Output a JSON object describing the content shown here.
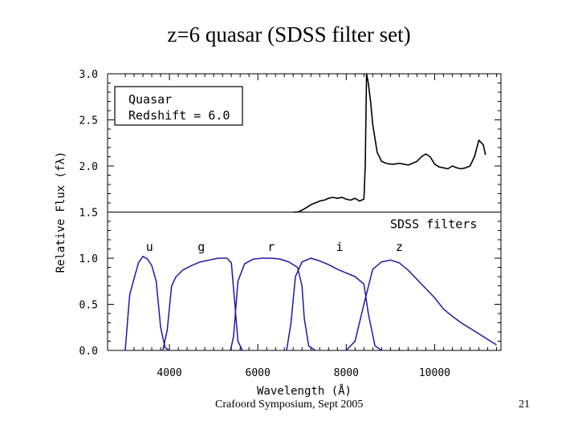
{
  "slide": {
    "title": "z=6 quasar (SDSS filter set)",
    "footer": "Crafoord Symposium, Sept 2005",
    "page_number": "21"
  },
  "colors": {
    "filter_curve": "#1a1aa8",
    "spectrum": "#000000"
  },
  "chart_data": {
    "type": "line",
    "title": "z=6 quasar (SDSS filter set)",
    "xlabel": "Wavelength (Å)",
    "ylabel": "Relative Flux (fλ)",
    "xlim": [
      2600,
      11500
    ],
    "ylim": [
      0.0,
      3.0
    ],
    "x_ticks": [
      4000,
      6000,
      8000,
      10000
    ],
    "x_tick_labels": [
      "4000",
      "6000",
      "8000",
      "10000"
    ],
    "y_ticks": [
      0.0,
      0.5,
      1.0,
      1.5,
      2.0,
      2.5,
      3.0
    ],
    "y_tick_labels": [
      "0.0",
      "0.5",
      "1.0",
      "1.5",
      "2.0",
      "2.5",
      "3.0"
    ],
    "legend_box": {
      "line1": "Quasar",
      "line2": "Redshift = 6.0"
    },
    "baseline_level": 1.5,
    "filters_label": "SDSS filters",
    "series": [
      {
        "name": "Quasar spectrum",
        "x": [
          6800,
          6900,
          7000,
          7100,
          7200,
          7300,
          7400,
          7500,
          7600,
          7700,
          7800,
          7900,
          8000,
          8100,
          8200,
          8300,
          8400,
          8430,
          8460,
          8500,
          8550,
          8600,
          8700,
          8800,
          8900,
          9000,
          9100,
          9200,
          9300,
          9400,
          9500,
          9600,
          9700,
          9800,
          9900,
          10000,
          10100,
          10200,
          10300,
          10400,
          10500,
          10600,
          10700,
          10800,
          10900,
          11000,
          11100,
          11150
        ],
        "y": [
          1.5,
          1.5,
          1.52,
          1.55,
          1.58,
          1.6,
          1.62,
          1.63,
          1.65,
          1.66,
          1.65,
          1.66,
          1.64,
          1.63,
          1.65,
          1.62,
          1.64,
          2.0,
          3.0,
          2.9,
          2.7,
          2.45,
          2.15,
          2.05,
          2.03,
          2.02,
          2.02,
          2.03,
          2.02,
          2.01,
          2.03,
          2.05,
          2.1,
          2.13,
          2.1,
          2.02,
          1.99,
          1.98,
          1.97,
          2.0,
          1.98,
          1.97,
          1.98,
          2.0,
          2.1,
          2.28,
          2.23,
          2.12
        ]
      },
      {
        "name": "u",
        "x": [
          3000,
          3100,
          3200,
          3300,
          3400,
          3500,
          3600,
          3700,
          3800,
          3900,
          4000
        ],
        "y": [
          0.0,
          0.6,
          0.78,
          0.95,
          1.02,
          0.99,
          0.92,
          0.75,
          0.25,
          0.03,
          0.0
        ]
      },
      {
        "name": "g",
        "x": [
          3850,
          3950,
          4050,
          4150,
          4300,
          4500,
          4700,
          4900,
          5100,
          5300,
          5400,
          5480,
          5550,
          5650
        ],
        "y": [
          0.0,
          0.22,
          0.7,
          0.8,
          0.87,
          0.92,
          0.96,
          0.98,
          1.0,
          1.0,
          0.95,
          0.5,
          0.1,
          0.0
        ]
      },
      {
        "name": "r",
        "x": [
          5380,
          5450,
          5550,
          5700,
          5900,
          6100,
          6300,
          6500,
          6700,
          6900,
          7000,
          7050,
          7150,
          7300
        ],
        "y": [
          0.0,
          0.15,
          0.75,
          0.94,
          0.99,
          1.0,
          1.0,
          0.99,
          0.96,
          0.9,
          0.7,
          0.35,
          0.05,
          0.0
        ]
      },
      {
        "name": "i",
        "x": [
          6650,
          6750,
          6850,
          7000,
          7200,
          7400,
          7600,
          7800,
          8000,
          8200,
          8400,
          8500,
          8650,
          8800
        ],
        "y": [
          0.0,
          0.3,
          0.8,
          0.96,
          1.0,
          0.97,
          0.93,
          0.88,
          0.84,
          0.8,
          0.72,
          0.4,
          0.05,
          0.0
        ]
      },
      {
        "name": "z",
        "x": [
          8000,
          8200,
          8400,
          8600,
          8800,
          9000,
          9200,
          9400,
          9600,
          9800,
          10000,
          10200,
          10400,
          10600,
          10800,
          11000,
          11200,
          11400
        ],
        "y": [
          0.0,
          0.1,
          0.5,
          0.88,
          0.96,
          0.98,
          0.95,
          0.87,
          0.77,
          0.67,
          0.57,
          0.45,
          0.37,
          0.3,
          0.24,
          0.18,
          0.12,
          0.06
        ]
      }
    ],
    "filter_labels": [
      {
        "name": "u",
        "text": "u",
        "x": 3550,
        "y": 1.08
      },
      {
        "name": "g",
        "text": "g",
        "x": 4720,
        "y": 1.08
      },
      {
        "name": "r",
        "text": "r",
        "x": 6300,
        "y": 1.08
      },
      {
        "name": "i",
        "text": "i",
        "x": 7850,
        "y": 1.08
      },
      {
        "name": "z",
        "text": "z",
        "x": 9200,
        "y": 1.08
      }
    ]
  }
}
